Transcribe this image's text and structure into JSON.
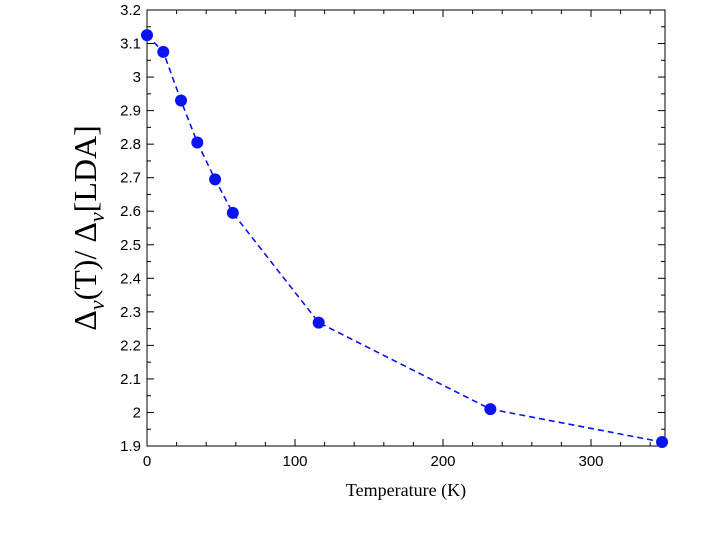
{
  "chart_data": {
    "type": "line",
    "xlabel": "Temperature (K)",
    "ylabel_parts": {
      "delta1": "Δ",
      "sub1": "v",
      "mid": "(T)/ ",
      "delta2": "Δ",
      "sub2": "v",
      "end": "[LDA]"
    },
    "xlim": [
      0,
      350
    ],
    "ylim": [
      1.9,
      3.2
    ],
    "xticks": [
      0,
      100,
      200,
      300
    ],
    "xtick_labels": [
      "0",
      "100",
      "200",
      "300"
    ],
    "yticks": [
      1.9,
      2.0,
      2.1,
      2.2,
      2.3,
      2.4,
      2.5,
      2.6,
      2.7,
      2.8,
      2.9,
      3.0,
      3.1,
      3.2
    ],
    "ytick_labels": [
      "1.9",
      "2",
      "2.1",
      "2.2",
      "2.3",
      "2.4",
      "2.5",
      "2.6",
      "2.7",
      "2.8",
      "2.9",
      "3",
      "3.1",
      "3.2"
    ],
    "series": [
      {
        "x": [
          0,
          11,
          23,
          34,
          46,
          58,
          116,
          232,
          348
        ],
        "y": [
          3.125,
          3.075,
          2.93,
          2.805,
          2.695,
          2.595,
          2.268,
          2.01,
          1.912
        ],
        "line_style": "dashed",
        "marker": "filled-circle",
        "color": "#0a14f0"
      }
    ],
    "grid": false
  }
}
